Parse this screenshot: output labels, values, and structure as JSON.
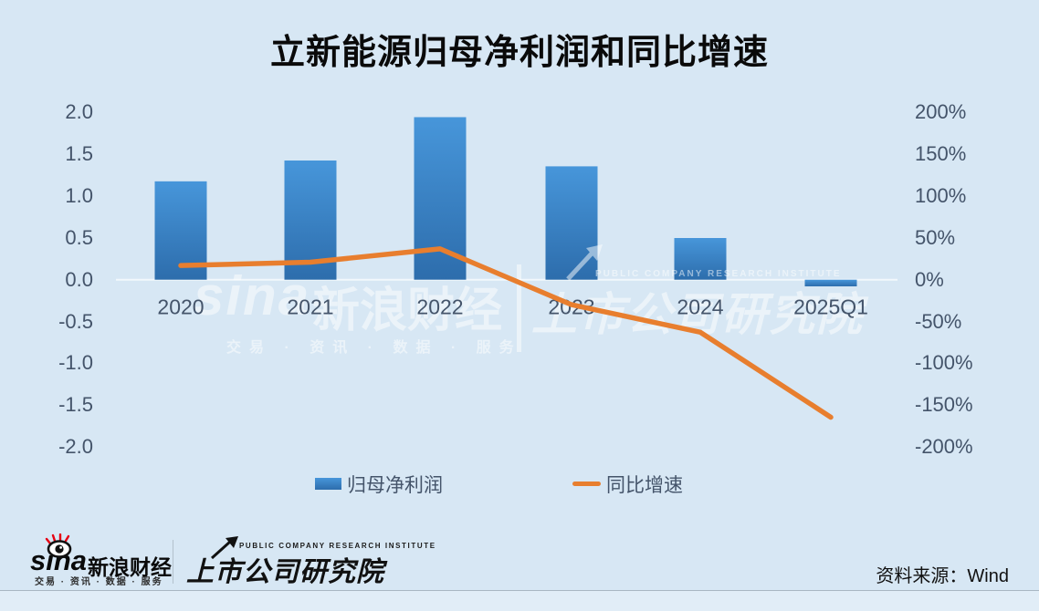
{
  "title": "立新能源归母净利润和同比增速",
  "chart_data": {
    "type": "combo-bar-line",
    "categories": [
      "2020",
      "2021",
      "2022",
      "2023",
      "2024",
      "2025Q1"
    ],
    "series": [
      {
        "name": "归母净利润",
        "type": "bar",
        "axis": "left",
        "values": [
          1.18,
          1.43,
          1.95,
          1.36,
          0.5,
          -0.08
        ]
      },
      {
        "name": "同比增速",
        "type": "line",
        "axis": "right",
        "values": [
          17,
          21,
          37,
          -30,
          -63,
          -165
        ]
      }
    ],
    "left_axis": {
      "min": -2.0,
      "max": 2.0,
      "tick_step": 0.5,
      "ticks": [
        "2.0",
        "1.5",
        "1.0",
        "0.5",
        "0.0",
        "-0.5",
        "-1.0",
        "-1.5",
        "-2.0"
      ]
    },
    "right_axis": {
      "min": -200,
      "max": 200,
      "tick_step": 50,
      "ticks": [
        "200%",
        "150%",
        "100%",
        "50%",
        "0%",
        "-50%",
        "-100%",
        "-150%",
        "-200%"
      ]
    },
    "grid": "zero-line-only",
    "legend_position": "bottom"
  },
  "watermark": {
    "sina_word": "sina",
    "brand": "新浪财经",
    "tagline": "交易 · 资讯 · 数据 · 服务",
    "pcri_en": "PUBLIC COMPANY RESEARCH INSTITUTE",
    "pcri": "上市公司研究院"
  },
  "footer": {
    "sina_word": "sina",
    "brand": "新浪财经",
    "tagline": "交易 · 资讯 · 数据 · 服务",
    "pcri_en": "PUBLIC COMPANY RESEARCH INSTITUTE",
    "pcri": "上市公司研究院",
    "source": "资料来源：Wind"
  },
  "colors": {
    "background": "#d7e7f4",
    "bar_top": "#4796da",
    "bar_bottom": "#2d6dac",
    "line": "#e87e2e",
    "axis_text": "#44546a",
    "zero_line": "#f2f8fc",
    "sina_red": "#e60012"
  }
}
